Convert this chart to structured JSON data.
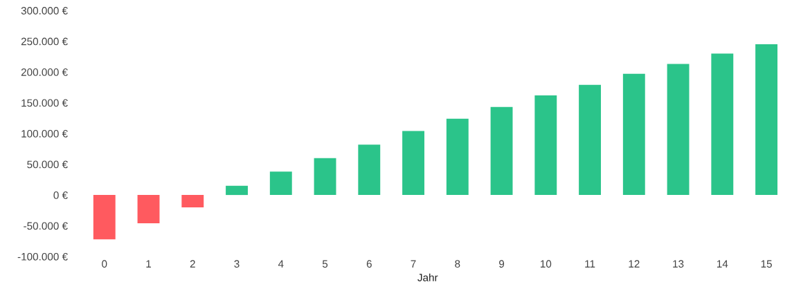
{
  "chart_data": {
    "type": "bar",
    "xlabel": "Jahr",
    "categories": [
      "0",
      "1",
      "2",
      "3",
      "4",
      "5",
      "6",
      "7",
      "8",
      "9",
      "10",
      "11",
      "12",
      "13",
      "14",
      "15"
    ],
    "values": [
      -72000,
      -46000,
      -20000,
      15000,
      38000,
      60000,
      82000,
      104000,
      124000,
      143000,
      162000,
      179000,
      197000,
      213000,
      230000,
      245000
    ],
    "colors": [
      "#ff5a5f",
      "#ff5a5f",
      "#ff5a5f",
      "#2bc48a",
      "#2bc48a",
      "#2bc48a",
      "#2bc48a",
      "#2bc48a",
      "#2bc48a",
      "#2bc48a",
      "#2bc48a",
      "#2bc48a",
      "#2bc48a",
      "#2bc48a",
      "#2bc48a",
      "#2bc48a"
    ],
    "ylim": [
      -100000,
      300000
    ],
    "yticks": [
      {
        "value": -100000,
        "label": "-100.000 €"
      },
      {
        "value": -50000,
        "label": "-50.000 €"
      },
      {
        "value": 0,
        "label": "0 €"
      },
      {
        "value": 50000,
        "label": "50.000 €"
      },
      {
        "value": 100000,
        "label": "100.000 €"
      },
      {
        "value": 150000,
        "label": "150.000 €"
      },
      {
        "value": 200000,
        "label": "200.000 €"
      },
      {
        "value": 250000,
        "label": "250.000 €"
      },
      {
        "value": 300000,
        "label": "300.000 €"
      }
    ],
    "grid": false
  }
}
